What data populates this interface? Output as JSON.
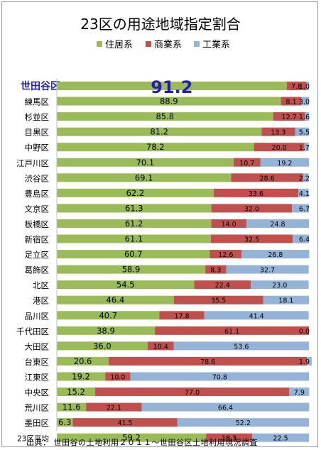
{
  "chart_data": {
    "type": "bar",
    "stacked": true,
    "orientation": "horizontal",
    "title": "23区の用途地域指定割合",
    "legend_position": "top",
    "xlim": [
      0,
      100
    ],
    "grid": false,
    "categories": [
      "世田谷区",
      "練馬区",
      "杉並区",
      "目黒区",
      "中野区",
      "江戸川区",
      "渋谷区",
      "豊島区",
      "文京区",
      "板橋区",
      "新宿区",
      "足立区",
      "葛飾区",
      "北区",
      "港区",
      "品川区",
      "千代田区",
      "大田区",
      "台東区",
      "江東区",
      "中央区",
      "荒川区",
      "墨田区",
      "23区平均"
    ],
    "highlight_category": "世田谷区",
    "series": [
      {
        "name": "住居系",
        "color": "#9bbb59",
        "values": [
          91.2,
          88.9,
          85.8,
          81.2,
          78.2,
          70.1,
          69.1,
          62.2,
          61.3,
          61.2,
          61.1,
          60.7,
          58.9,
          54.5,
          46.4,
          40.7,
          38.9,
          36.0,
          20.6,
          19.2,
          15.2,
          11.6,
          6.3,
          59.2
        ]
      },
      {
        "name": "商業系",
        "color": "#c0504d",
        "values": [
          7.8,
          8.1,
          12.7,
          13.3,
          20.0,
          10.7,
          28.6,
          33.6,
          32.0,
          14.0,
          32.5,
          12.6,
          8.3,
          22.4,
          35.5,
          17.8,
          61.1,
          10.4,
          78.6,
          10.0,
          77.0,
          22.1,
          41.5,
          18.3
        ]
      },
      {
        "name": "工業系",
        "color": "#95b3d7",
        "values": [
          1.0,
          3.0,
          1.6,
          5.5,
          1.7,
          19.2,
          2.2,
          4.1,
          6.7,
          24.8,
          6.4,
          26.8,
          32.7,
          23.0,
          18.1,
          41.4,
          0.0,
          53.6,
          1.9,
          70.8,
          7.9,
          66.4,
          52.2,
          22.5
        ]
      }
    ],
    "labels": [
      [
        "91.2",
        "7.8",
        "1.0"
      ],
      [
        "88.9",
        "8.1",
        "3.0"
      ],
      [
        "85.8",
        "12.7",
        "1.6"
      ],
      [
        "81.2",
        "13.3",
        "5.5"
      ],
      [
        "78.2",
        "20.0",
        "1.7"
      ],
      [
        "70.1",
        "10.7",
        "19.2"
      ],
      [
        "69.1",
        "28.6",
        "2.2"
      ],
      [
        "62.2",
        "33.6",
        "4.1"
      ],
      [
        "61.3",
        "32.0",
        "6.7"
      ],
      [
        "61.2",
        "14.0",
        "24.8"
      ],
      [
        "61.1",
        "32.5",
        "6.4"
      ],
      [
        "60.7",
        "12.6",
        "26.8"
      ],
      [
        "58.9",
        "8.3",
        "32.7"
      ],
      [
        "54.5",
        "22.4",
        "23.0"
      ],
      [
        "46.4",
        "35.5",
        "18.1"
      ],
      [
        "40.7",
        "17.8",
        "41.4"
      ],
      [
        "38.9",
        "61.1",
        "0.0"
      ],
      [
        "36.0",
        "10.4",
        "53.6"
      ],
      [
        "20.6",
        "78.6",
        "1.9"
      ],
      [
        "19.2",
        "10.0",
        "70.8"
      ],
      [
        "15.2",
        "77.0",
        "7.9"
      ],
      [
        "11.6",
        "22.1",
        "66.4"
      ],
      [
        "6.3",
        "41.5",
        "52.2"
      ],
      [
        "59.2",
        "18.3",
        "22.5"
      ]
    ],
    "highlight_color": "#1f1fb4"
  },
  "source": "出典： 世田谷の土地利用２０１１～世田谷区土地利用現況調査"
}
